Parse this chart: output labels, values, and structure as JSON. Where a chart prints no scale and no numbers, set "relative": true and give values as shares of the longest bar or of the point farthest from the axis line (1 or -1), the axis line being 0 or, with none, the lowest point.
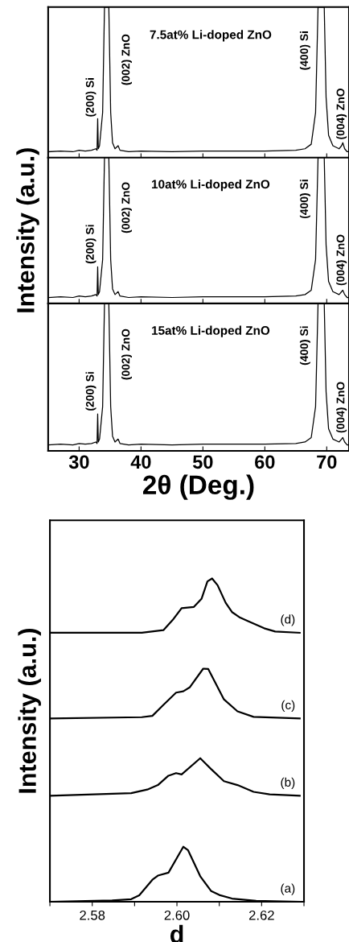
{
  "chart_data": [
    {
      "type": "line",
      "relative": true,
      "title": "7.5at% Li-doped ZnO",
      "xlim": [
        25,
        73.6
      ],
      "xticks": [
        30,
        40,
        50,
        60,
        70
      ],
      "tick_labels": false,
      "x": [
        25,
        27,
        29,
        30,
        31,
        32,
        32.7,
        32.9,
        33.0,
        33.1,
        33.3,
        33.8,
        34.1,
        34.8,
        35.1,
        35.4,
        35.8,
        36.3,
        36.6,
        38,
        40,
        45,
        50,
        55,
        60,
        65,
        66.5,
        67.5,
        68.2,
        68.6,
        69.6,
        69.9,
        70.3,
        71,
        72,
        72.4,
        72.6,
        72.9,
        73.3,
        73.6
      ],
      "series": [
        {
          "color": "#000000",
          "values": [
            0.04,
            0.045,
            0.04,
            0.05,
            0.045,
            0.05,
            0.06,
            0.05,
            0.26,
            0.06,
            0.08,
            0.3,
            1,
            1,
            0.3,
            0.1,
            0.06,
            0.08,
            0.05,
            0.04,
            0.045,
            0.04,
            0.045,
            0.045,
            0.045,
            0.05,
            0.06,
            0.09,
            0.3,
            1,
            1,
            0.4,
            0.15,
            0.08,
            0.06,
            0.08,
            0.1,
            0.06,
            0.04,
            0.04
          ]
        }
      ],
      "annotations": [
        "(200) Si",
        "(002) ZnO",
        "(400) Si",
        "(004) ZnO"
      ]
    },
    {
      "type": "line",
      "relative": true,
      "title": "10at% Li-doped ZnO",
      "ylabel": "Intensity (a.u.)",
      "xlim": [
        25,
        73.6
      ],
      "xticks": [
        30,
        40,
        50,
        60,
        70
      ],
      "tick_labels": false,
      "x": [
        25,
        27,
        29,
        30,
        31,
        32,
        32.7,
        32.9,
        33.0,
        33.1,
        33.3,
        33.8,
        34.1,
        34.8,
        35.1,
        35.4,
        35.8,
        36.3,
        36.6,
        38,
        40,
        45,
        50,
        55,
        60,
        65,
        66.5,
        67.5,
        68.2,
        68.6,
        69.6,
        69.9,
        70.3,
        71,
        72,
        72.4,
        72.6,
        72.9,
        73.3,
        73.6
      ],
      "series": [
        {
          "color": "#000000",
          "values": [
            0.04,
            0.045,
            0.04,
            0.05,
            0.045,
            0.05,
            0.06,
            0.05,
            0.25,
            0.06,
            0.08,
            0.3,
            1,
            1,
            0.3,
            0.1,
            0.06,
            0.08,
            0.05,
            0.04,
            0.045,
            0.04,
            0.045,
            0.045,
            0.045,
            0.05,
            0.06,
            0.09,
            0.3,
            1,
            1,
            0.4,
            0.15,
            0.08,
            0.06,
            0.08,
            0.09,
            0.06,
            0.04,
            0.04
          ]
        }
      ],
      "annotations": [
        "(200) Si",
        "(002) ZnO",
        "(400) Si",
        "(004) ZnO"
      ]
    },
    {
      "type": "line",
      "relative": true,
      "title": "15at% Li-doped ZnO",
      "xlabel": "2θ (Deg.)",
      "xlim": [
        25,
        73.6
      ],
      "xticks": [
        30,
        40,
        50,
        60,
        70
      ],
      "tick_labels": "x",
      "x": [
        25,
        27,
        29,
        30,
        31,
        32,
        32.7,
        32.9,
        33.0,
        33.1,
        33.3,
        33.8,
        34.1,
        34.8,
        35.1,
        35.4,
        35.8,
        36.3,
        36.6,
        38,
        40,
        45,
        50,
        55,
        60,
        65,
        66.5,
        67.5,
        68.2,
        68.6,
        69.6,
        69.9,
        70.3,
        71,
        72,
        72.4,
        72.6,
        72.9,
        73.3,
        73.6
      ],
      "series": [
        {
          "color": "#000000",
          "values": [
            0.04,
            0.045,
            0.04,
            0.05,
            0.045,
            0.05,
            0.06,
            0.05,
            0.25,
            0.06,
            0.08,
            0.3,
            1,
            1,
            0.3,
            0.1,
            0.06,
            0.08,
            0.05,
            0.04,
            0.045,
            0.04,
            0.045,
            0.045,
            0.045,
            0.05,
            0.06,
            0.09,
            0.3,
            1,
            1,
            0.4,
            0.15,
            0.08,
            0.06,
            0.08,
            0.09,
            0.06,
            0.04,
            0.04
          ]
        }
      ],
      "annotations": [
        "(200) Si",
        "(002) ZnO",
        "(400) Si",
        "(004) ZnO"
      ]
    },
    {
      "type": "line",
      "relative": true,
      "xlabel": "d",
      "ylabel": "Intensity (a.u.)",
      "xlim": [
        2.57,
        2.63
      ],
      "xticks": [
        {
          "value": 2.57,
          "label": null
        },
        2.58,
        {
          "value": 2.59,
          "label": null
        },
        {
          "value": 2.6,
          "label": "2.60"
        },
        {
          "value": 2.61,
          "label": null
        },
        2.62,
        {
          "value": 2.63,
          "label": null
        }
      ],
      "series": [
        {
          "name": "(a)",
          "color": "#000000",
          "x": [
            2.57,
            2.5847,
            2.5892,
            2.5911,
            2.5942,
            2.5955,
            2.598,
            2.6015,
            2.6026,
            2.6055,
            2.6081,
            2.61,
            2.613,
            2.6187,
            2.629
          ],
          "values": [
            0,
            0.004,
            0.008,
            0.02,
            0.068,
            0.081,
            0.09,
            0.17,
            0.16,
            0.079,
            0.033,
            0.021,
            0.01,
            0.003,
            0
          ]
        },
        {
          "name": "(b)",
          "color": "#000000",
          "x": [
            2.57,
            2.5892,
            2.593,
            2.5955,
            2.598,
            2.5998,
            2.6011,
            2.6055,
            2.6081,
            2.6111,
            2.6143,
            2.6181,
            2.6219,
            2.629
          ],
          "values": [
            0.328,
            0.336,
            0.347,
            0.361,
            0.39,
            0.398,
            0.394,
            0.444,
            0.41,
            0.373,
            0.361,
            0.34,
            0.332,
            0.328
          ]
        },
        {
          "name": "(c)",
          "color": "#000000",
          "x": [
            2.57,
            2.5917,
            2.5942,
            2.5968,
            2.5998,
            2.6015,
            2.603,
            2.6062,
            2.6074,
            2.6111,
            2.6143,
            2.6181,
            2.629
          ],
          "values": [
            0.567,
            0.571,
            0.575,
            0.609,
            0.647,
            0.651,
            0.663,
            0.721,
            0.72,
            0.626,
            0.589,
            0.572,
            0.567
          ]
        },
        {
          "name": "(d)",
          "color": "#000000",
          "x": [
            2.57,
            2.5917,
            2.5968,
            2.5992,
            2.6011,
            2.604,
            2.6058,
            2.6072,
            2.6083,
            2.6096,
            2.6115,
            2.613,
            2.6149,
            2.6168,
            2.6206,
            2.6232,
            2.629
          ],
          "values": [
            0.832,
            0.832,
            0.84,
            0.875,
            0.908,
            0.912,
            0.937,
            0.991,
            1.0,
            0.979,
            0.925,
            0.896,
            0.879,
            0.868,
            0.846,
            0.836,
            0.832
          ]
        }
      ]
    }
  ]
}
